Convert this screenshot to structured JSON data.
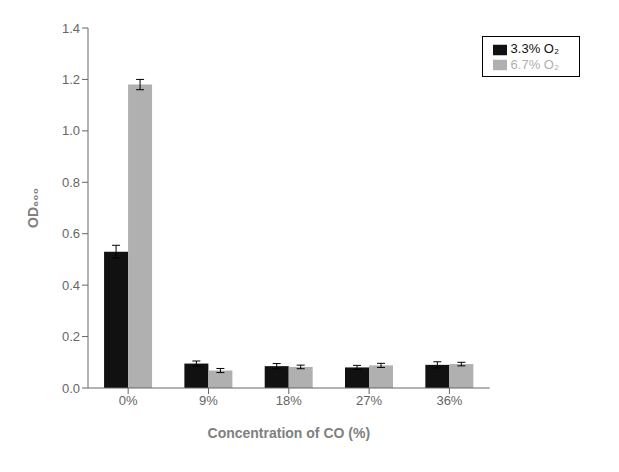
{
  "chart_data": {
    "type": "bar",
    "categories": [
      "0%",
      "9%",
      "18%",
      "27%",
      "36%"
    ],
    "series": [
      {
        "name": "3.3% O₂",
        "color": "#111111",
        "values": [
          0.53,
          0.095,
          0.085,
          0.08,
          0.09
        ],
        "errors": [
          0.025,
          0.01,
          0.01,
          0.008,
          0.012
        ]
      },
      {
        "name": "6.7% O₂",
        "color": "#b0b0b0",
        "values": [
          1.18,
          0.068,
          0.082,
          0.088,
          0.093
        ],
        "errors": [
          0.02,
          0.008,
          0.007,
          0.008,
          0.007
        ]
      }
    ],
    "xlabel": "Concentration of CO (%)",
    "ylabel": "OD₆₀₀",
    "ylim": [
      0.0,
      1.4
    ],
    "yticks": [
      {
        "value": 0,
        "label": "0.0"
      },
      0.2,
      0.4,
      0.6,
      0.8,
      {
        "value": 1,
        "label": "1.0"
      },
      1.2,
      1.4
    ],
    "legend": "upper right",
    "grid": false
  }
}
